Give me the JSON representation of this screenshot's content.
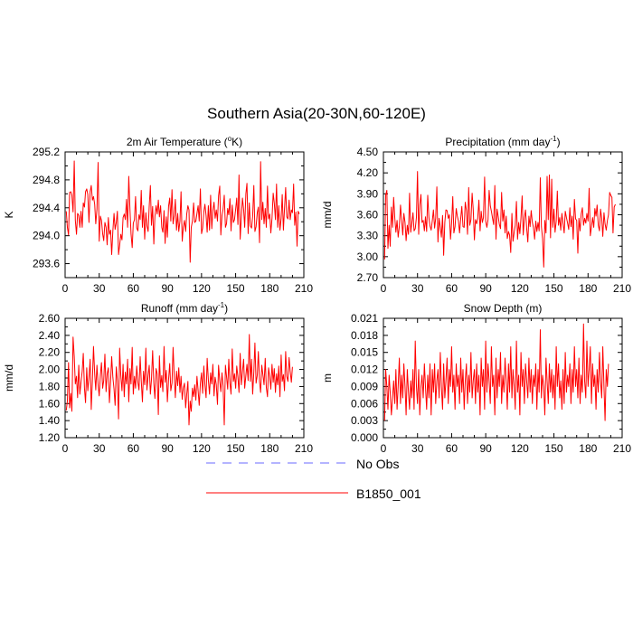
{
  "figure_title": "Southern Asia(20-30N,60-120E)",
  "colors": {
    "model": "#ff0000",
    "obs": "#6a6aff",
    "axis": "#000000"
  },
  "legend": {
    "obs_label": "No Obs",
    "model_label": "B1850_001"
  },
  "chart_data": [
    {
      "type": "line",
      "title": "2m Air Temperature (°K)",
      "title_parts": [
        "2m Air Temperature (",
        "o",
        "K)"
      ],
      "ylabel": "K",
      "xlim": [
        0,
        210
      ],
      "ylim": [
        293.4,
        295.2
      ],
      "xticks": [
        "0",
        "30",
        "60",
        "90",
        "120",
        "150",
        "180",
        "210"
      ],
      "yticks": [
        "293.6",
        "294.0",
        "294.4",
        "294.8",
        "295.2"
      ],
      "yticks_values": [
        293.6,
        294.0,
        294.4,
        294.8,
        295.2
      ],
      "series": [
        {
          "name": "B1850_001",
          "x_start": 1,
          "values": [
            294.35,
            294.12,
            294.01,
            294.62,
            294.63,
            294.58,
            294.34,
            295.07,
            294.22,
            294.02,
            294.32,
            294.29,
            294.12,
            294.35,
            294.12,
            294.47,
            294.41,
            294.63,
            294.67,
            294.59,
            294.19,
            294.63,
            294.72,
            294.51,
            294.56,
            294.45,
            294.17,
            294.38,
            295.05,
            293.92,
            294.28,
            294.22,
            294.03,
            293.93,
            294.19,
            294.12,
            293.87,
            294.26,
            294.02,
            294.08,
            293.73,
            294.07,
            294.32,
            294.09,
            294.19,
            294.35,
            293.73,
            293.86,
            294.02,
            293.94,
            294.26,
            294.31,
            294.23,
            294.52,
            294.12,
            294.85,
            294.38,
            294.03,
            293.83,
            294.18,
            294.23,
            294.56,
            294.11,
            294.07,
            294.3,
            294.23,
            294.65,
            294.12,
            294.43,
            293.95,
            294.33,
            294.14,
            294.06,
            294.42,
            294.72,
            294.15,
            294.42,
            293.88,
            294.28,
            294.43,
            294.31,
            294.51,
            294.27,
            294.43,
            294.12,
            294.05,
            294.36,
            293.89,
            294.27,
            293.98,
            294.42,
            294.54,
            294.21,
            294.66,
            294.17,
            294.29,
            294.52,
            294.08,
            294.32,
            294.06,
            294.21,
            294.63,
            293.92,
            294.12,
            294.22,
            294.06,
            294.31,
            294.43,
            294.37,
            293.62,
            294.12,
            294.21,
            294.47,
            294.19,
            294.21,
            294.32,
            294.43,
            294.21,
            294.67,
            294.03,
            294.11,
            294.34,
            294.45,
            294.29,
            294.05,
            294.43,
            294.08,
            294.58,
            294.1,
            294.36,
            294.48,
            294.25,
            294.37,
            294.21,
            294.57,
            294.71,
            294.01,
            294.29,
            294.38,
            294.58,
            294.12,
            294.17,
            294.39,
            294.3,
            294.53,
            294.07,
            294.44,
            294.19,
            294.23,
            294.38,
            294.54,
            294.16,
            294.87,
            293.95,
            294.27,
            294.54,
            294.38,
            294.12,
            294.6,
            294.75,
            294.03,
            294.47,
            294.14,
            294.11,
            294.28,
            294.72,
            294.06,
            294.13,
            294.33,
            294.41,
            293.9,
            295.06,
            294.23,
            294.48,
            294.17,
            294.39,
            294.12,
            294.71,
            294.24,
            294.31,
            294.04,
            294.25,
            294.61,
            294.47,
            294.23,
            294.74,
            294.12,
            294.43,
            294.08,
            294.25,
            294.59,
            294.08,
            294.38,
            294.69,
            294.27,
            294.24,
            294.51,
            294.23,
            294.37,
            294.33,
            294.74,
            294.15,
            294.34,
            293.85,
            294.35,
            294.31
          ]
        }
      ]
    },
    {
      "type": "line",
      "title": "Precipitation (mm day⁻¹)",
      "title_parts": [
        "Precipitation (mm day",
        "-1",
        ")"
      ],
      "ylabel": "mm/d",
      "xlim": [
        0,
        210
      ],
      "ylim": [
        2.7,
        4.5
      ],
      "xticks": [
        "0",
        "30",
        "60",
        "90",
        "120",
        "150",
        "180",
        "210"
      ],
      "yticks": [
        "2.70",
        "3.00",
        "3.30",
        "3.60",
        "3.90",
        "4.20",
        "4.50"
      ],
      "yticks_values": [
        2.7,
        3.0,
        3.3,
        3.6,
        3.9,
        4.2,
        4.5
      ],
      "series": [
        {
          "name": "B1850_001",
          "x_start": 1,
          "values": [
            2.96,
            3.88,
            3.95,
            3.12,
            3.45,
            3.15,
            3.71,
            3.42,
            3.85,
            3.55,
            3.35,
            3.52,
            3.28,
            3.43,
            3.74,
            3.53,
            3.31,
            3.62,
            3.49,
            3.23,
            3.45,
            3.32,
            3.91,
            3.35,
            3.48,
            3.63,
            3.37,
            3.4,
            3.56,
            4.22,
            3.32,
            3.74,
            3.89,
            3.49,
            3.52,
            3.37,
            3.57,
            3.36,
            3.88,
            3.56,
            3.44,
            3.38,
            3.52,
            3.67,
            3.41,
            3.55,
            4.0,
            3.21,
            3.55,
            3.42,
            3.28,
            3.59,
            3.02,
            3.49,
            3.67,
            3.66,
            3.55,
            3.6,
            3.25,
            3.48,
            3.86,
            3.34,
            3.43,
            3.69,
            3.58,
            3.51,
            3.34,
            3.55,
            3.72,
            3.43,
            3.42,
            3.78,
            3.66,
            3.32,
            3.99,
            3.45,
            3.53,
            3.91,
            3.68,
            3.24,
            3.53,
            3.47,
            3.55,
            3.81,
            3.37,
            3.65,
            3.49,
            3.56,
            4.14,
            3.51,
            3.42,
            3.53,
            3.95,
            3.73,
            3.65,
            3.55,
            3.46,
            4.02,
            3.25,
            3.68,
            3.57,
            3.46,
            3.4,
            3.92,
            3.51,
            3.67,
            3.34,
            3.58,
            3.26,
            3.36,
            3.31,
            3.06,
            3.62,
            3.22,
            3.35,
            3.45,
            3.79,
            3.25,
            3.49,
            3.33,
            3.55,
            3.87,
            3.31,
            3.56,
            3.67,
            3.41,
            3.21,
            3.58,
            3.43,
            3.66,
            3.49,
            3.42,
            3.25,
            3.51,
            3.36,
            3.49,
            3.37,
            4.13,
            3.43,
            3.26,
            2.85,
            3.52,
            3.34,
            4.15,
            3.53,
            4.17,
            3.27,
            4.11,
            3.42,
            3.68,
            3.35,
            3.51,
            3.94,
            3.45,
            3.56,
            3.38,
            3.62,
            3.48,
            3.34,
            3.65,
            3.56,
            3.48,
            3.39,
            3.7,
            3.43,
            3.58,
            3.25,
            3.82,
            3.54,
            3.52,
            3.05,
            3.55,
            3.37,
            3.61,
            3.7,
            3.45,
            3.55,
            3.48,
            3.62,
            3.51,
            3.98,
            3.3,
            3.43,
            3.56,
            3.42,
            3.69,
            3.58,
            3.74,
            3.45,
            3.37,
            3.68,
            3.55,
            3.29,
            3.63,
            3.47,
            3.38,
            3.52,
            3.6,
            3.92,
            3.88,
            3.85,
            3.34,
            3.71,
            3.75
          ]
        }
      ]
    },
    {
      "type": "line",
      "title": "Runoff (mm day⁻¹)",
      "title_parts": [
        "Runoff (mm day",
        "-1",
        ")"
      ],
      "ylabel": "mm/d",
      "xlim": [
        0,
        210
      ],
      "ylim": [
        1.2,
        2.6
      ],
      "xticks": [
        "0",
        "30",
        "60",
        "90",
        "120",
        "150",
        "180",
        "210"
      ],
      "yticks": [
        "1.20",
        "1.40",
        "1.60",
        "1.80",
        "2.00",
        "2.20",
        "2.40",
        "2.60"
      ],
      "yticks_values": [
        1.2,
        1.4,
        1.6,
        1.8,
        2.0,
        2.2,
        2.4,
        2.6
      ],
      "series": [
        {
          "name": "B1850_001",
          "x_start": 1,
          "values": [
            1.52,
            1.63,
            2.08,
            1.55,
            1.72,
            1.51,
            2.38,
            2.15,
            1.83,
            1.92,
            1.67,
            2.05,
            1.71,
            1.85,
            1.98,
            2.19,
            1.78,
            1.61,
            2.02,
            1.75,
            1.91,
            2.12,
            1.53,
            1.88,
            2.27,
            1.95,
            1.76,
            2.05,
            1.82,
            1.69,
            1.93,
            2.08,
            1.78,
            1.87,
            2.18,
            1.74,
            1.95,
            2.02,
            1.61,
            1.86,
            2.15,
            1.91,
            1.77,
            1.58,
            2.03,
            1.87,
            1.42,
            2.25,
            1.93,
            1.75,
            2.06,
            1.68,
            1.97,
            1.83,
            2.12,
            1.62,
            2.01,
            1.83,
            2.26,
            1.71,
            1.92,
            1.78,
            2.04,
            1.85,
            1.76,
            2.15,
            1.87,
            1.62,
            1.98,
            1.82,
            2.25,
            1.76,
            1.93,
            2.05,
            1.71,
            1.88,
            2.22,
            1.84,
            1.66,
            2.01,
            1.95,
            1.47,
            2.16,
            1.79,
            1.93,
            1.74,
            2.27,
            1.85,
            1.99,
            1.62,
            1.88,
            2.07,
            1.75,
            1.84,
            2.26,
            1.92,
            1.67,
            1.98,
            1.81,
            2.02,
            1.73,
            1.92,
            1.65,
            1.78,
            1.84,
            1.55,
            1.71,
            1.86,
            1.35,
            1.63,
            1.51,
            1.78,
            1.68,
            1.82,
            1.64,
            1.92,
            1.75,
            1.58,
            1.84,
            1.96,
            1.72,
            2.04,
            1.82,
            1.67,
            2.13,
            1.88,
            1.71,
            1.96,
            1.83,
            2.06,
            1.69,
            1.91,
            1.82,
            1.59,
            2.05,
            1.87,
            1.74,
            1.96,
            1.81,
            1.35,
            2.05,
            1.92,
            1.77,
            2.12,
            1.84,
            1.71,
            2.24,
            1.86,
            1.95,
            1.78,
            2.04,
            1.91,
            1.73,
            2.19,
            1.82,
            1.97,
            2.12,
            1.78,
            1.93,
            2.06,
            1.87,
            2.41,
            1.86,
            2.12,
            1.71,
            1.97,
            2.31,
            1.84,
            1.93,
            2.21,
            1.86,
            1.73,
            2.05,
            1.94,
            1.82,
            2.13,
            1.79,
            1.68,
            2.02,
            1.91,
            1.77,
            2.06,
            1.85,
            2.01,
            1.73,
            1.95,
            1.82,
            2.04,
            1.68,
            2.17,
            1.86,
            1.94,
            1.75,
            2.21,
            1.92,
            1.86,
            2.14,
            1.98,
            1.85,
            2.03
          ]
        }
      ]
    },
    {
      "type": "line",
      "title": "Snow Depth (m)",
      "title_parts": [
        "Snow Depth (m)"
      ],
      "ylabel": "m",
      "xlim": [
        0,
        210
      ],
      "ylim": [
        0.0,
        0.021
      ],
      "xticks": [
        "0",
        "30",
        "60",
        "90",
        "120",
        "150",
        "180",
        "210"
      ],
      "yticks": [
        "0.000",
        "0.003",
        "0.006",
        "0.009",
        "0.012",
        "0.015",
        "0.018",
        "0.021"
      ],
      "yticks_values": [
        0.0,
        0.003,
        0.006,
        0.009,
        0.012,
        0.015,
        0.018,
        0.021
      ],
      "series": [
        {
          "name": "B1850_001",
          "x_start": 1,
          "values": [
            0.003,
            0.012,
            0.009,
            0.005,
            0.011,
            0.008,
            0.004,
            0.007,
            0.01,
            0.006,
            0.012,
            0.005,
            0.009,
            0.014,
            0.006,
            0.011,
            0.007,
            0.013,
            0.009,
            0.004,
            0.012,
            0.008,
            0.005,
            0.01,
            0.007,
            0.012,
            0.005,
            0.017,
            0.009,
            0.006,
            0.012,
            0.004,
            0.009,
            0.011,
            0.007,
            0.013,
            0.009,
            0.005,
            0.011,
            0.007,
            0.013,
            0.004,
            0.012,
            0.008,
            0.013,
            0.006,
            0.01,
            0.012,
            0.007,
            0.015,
            0.009,
            0.005,
            0.013,
            0.007,
            0.01,
            0.014,
            0.006,
            0.012,
            0.009,
            0.016,
            0.008,
            0.011,
            0.005,
            0.013,
            0.009,
            0.011,
            0.006,
            0.014,
            0.008,
            0.012,
            0.005,
            0.01,
            0.013,
            0.006,
            0.011,
            0.008,
            0.015,
            0.007,
            0.01,
            0.012,
            0.006,
            0.013,
            0.008,
            0.011,
            0.004,
            0.014,
            0.009,
            0.012,
            0.005,
            0.017,
            0.008,
            0.013,
            0.01,
            0.006,
            0.016,
            0.009,
            0.011,
            0.004,
            0.014,
            0.007,
            0.012,
            0.009,
            0.015,
            0.006,
            0.011,
            0.008,
            0.014,
            0.01,
            0.005,
            0.013,
            0.008,
            0.016,
            0.007,
            0.012,
            0.009,
            0.005,
            0.017,
            0.008,
            0.011,
            0.004,
            0.015,
            0.009,
            0.012,
            0.006,
            0.013,
            0.01,
            0.007,
            0.014,
            0.008,
            0.012,
            0.006,
            0.011,
            0.009,
            0.013,
            0.005,
            0.012,
            0.008,
            0.019,
            0.007,
            0.011,
            0.009,
            0.004,
            0.014,
            0.01,
            0.006,
            0.013,
            0.008,
            0.012,
            0.007,
            0.011,
            0.005,
            0.016,
            0.009,
            0.013,
            0.007,
            0.01,
            0.005,
            0.012,
            0.006,
            0.015,
            0.008,
            0.011,
            0.009,
            0.013,
            0.006,
            0.012,
            0.008,
            0.016,
            0.009,
            0.012,
            0.007,
            0.014,
            0.006,
            0.011,
            0.008,
            0.02,
            0.01,
            0.007,
            0.017,
            0.009,
            0.012,
            0.016,
            0.006,
            0.013,
            0.009,
            0.011,
            0.005,
            0.012,
            0.008,
            0.015,
            0.01,
            0.007,
            0.016,
            0.009,
            0.003,
            0.012,
            0.009,
            0.013
          ]
        }
      ]
    }
  ]
}
